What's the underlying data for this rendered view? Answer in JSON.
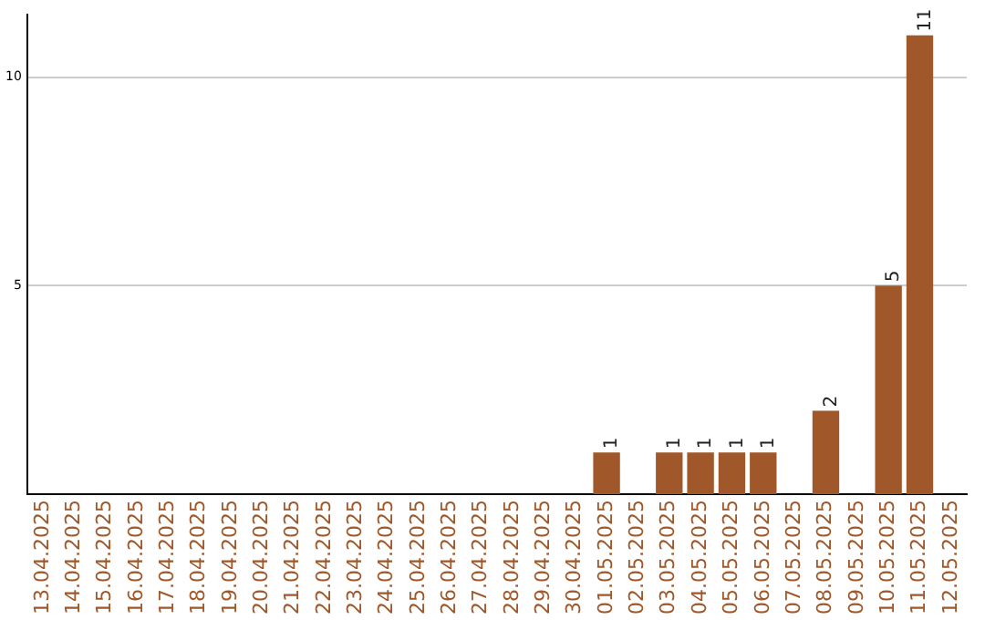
{
  "chart_data": {
    "type": "bar",
    "categories": [
      "13.04.2025",
      "14.04.2025",
      "15.04.2025",
      "16.04.2025",
      "17.04.2025",
      "18.04.2025",
      "19.04.2025",
      "20.04.2025",
      "21.04.2025",
      "22.04.2025",
      "23.04.2025",
      "24.04.2025",
      "25.04.2025",
      "26.04.2025",
      "27.04.2025",
      "28.04.2025",
      "29.04.2025",
      "30.04.2025",
      "01.05.2025",
      "02.05.2025",
      "03.05.2025",
      "04.05.2025",
      "05.05.2025",
      "06.05.2025",
      "07.05.2025",
      "08.05.2025",
      "09.05.2025",
      "10.05.2025",
      "11.05.2025",
      "12.05.2025"
    ],
    "values": [
      0,
      0,
      0,
      0,
      0,
      0,
      0,
      0,
      0,
      0,
      0,
      0,
      0,
      0,
      0,
      0,
      0,
      0,
      1,
      0,
      1,
      1,
      1,
      1,
      0,
      2,
      0,
      5,
      11,
      0
    ],
    "value_labels": [
      null,
      null,
      null,
      null,
      null,
      null,
      null,
      null,
      null,
      null,
      null,
      null,
      null,
      null,
      null,
      null,
      null,
      null,
      "1",
      null,
      "1",
      "1",
      "1",
      "1",
      null,
      "2",
      null,
      "5",
      "11",
      null
    ],
    "color": "#a0582a",
    "ylim": [
      0,
      11.5
    ],
    "yticks": [
      5,
      10
    ],
    "grid": "y",
    "legend": false
  }
}
